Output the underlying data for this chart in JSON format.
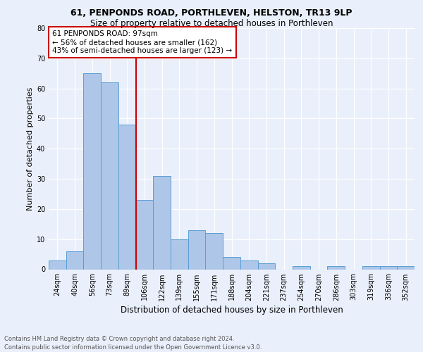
{
  "title1": "61, PENPONDS ROAD, PORTHLEVEN, HELSTON, TR13 9LP",
  "title2": "Size of property relative to detached houses in Porthleven",
  "xlabel": "Distribution of detached houses by size in Porthleven",
  "ylabel": "Number of detached properties",
  "footnote1": "Contains HM Land Registry data © Crown copyright and database right 2024.",
  "footnote2": "Contains public sector information licensed under the Open Government Licence v3.0.",
  "annotation_line1": "61 PENPONDS ROAD: 97sqm",
  "annotation_line2": "← 56% of detached houses are smaller (162)",
  "annotation_line3": "43% of semi-detached houses are larger (123) →",
  "bar_labels": [
    "24sqm",
    "40sqm",
    "56sqm",
    "73sqm",
    "89sqm",
    "106sqm",
    "122sqm",
    "139sqm",
    "155sqm",
    "171sqm",
    "188sqm",
    "204sqm",
    "221sqm",
    "237sqm",
    "254sqm",
    "270sqm",
    "286sqm",
    "303sqm",
    "319sqm",
    "336sqm",
    "352sqm"
  ],
  "bar_values": [
    3,
    6,
    65,
    62,
    48,
    23,
    31,
    10,
    13,
    12,
    4,
    3,
    2,
    0,
    1,
    0,
    1,
    0,
    1,
    1,
    1
  ],
  "bar_color": "#aec6e8",
  "bar_edge_color": "#5a9fd4",
  "vline_x": 4.5,
  "ylim": [
    0,
    80
  ],
  "yticks": [
    0,
    10,
    20,
    30,
    40,
    50,
    60,
    70,
    80
  ],
  "bg_color": "#eaf0fb",
  "plot_bg_color": "#eaf0fb",
  "annotation_box_edge": "#cc0000",
  "vline_color": "#cc0000",
  "title1_fontsize": 9,
  "title2_fontsize": 8.5,
  "ylabel_fontsize": 8,
  "xlabel_fontsize": 8.5,
  "tick_fontsize": 7,
  "annot_fontsize": 7.5,
  "footnote_fontsize": 6
}
